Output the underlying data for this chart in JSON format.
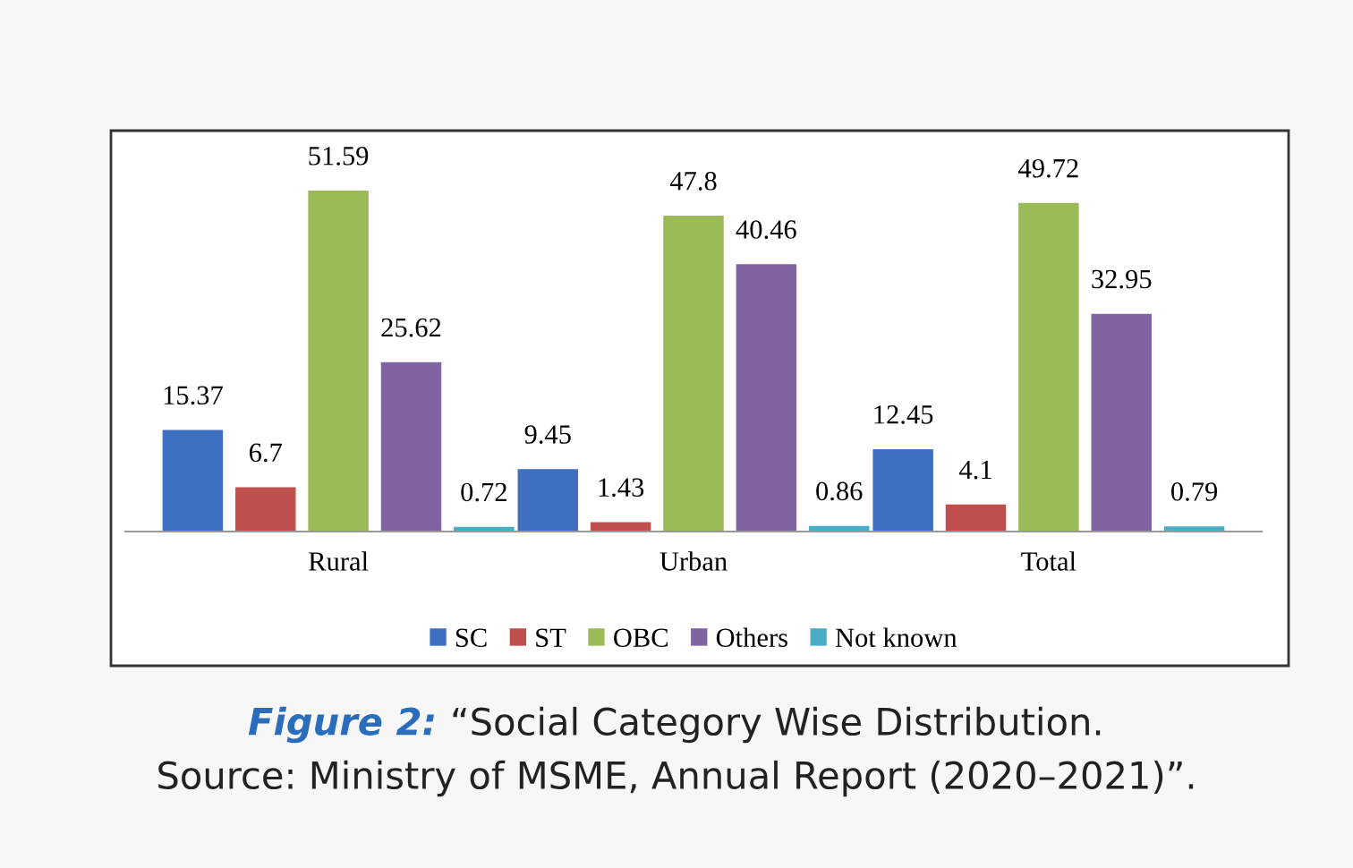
{
  "chart_data": {
    "type": "bar",
    "categories": [
      "Rural",
      "Urban",
      "Total"
    ],
    "series": [
      {
        "name": "SC",
        "color": "#3f6fc1",
        "values": [
          15.37,
          9.45,
          12.45
        ]
      },
      {
        "name": "ST",
        "color": "#c0504d",
        "values": [
          6.7,
          1.43,
          4.1
        ]
      },
      {
        "name": "OBC",
        "color": "#9bbb59",
        "values": [
          51.59,
          47.8,
          49.72
        ]
      },
      {
        "name": "Others",
        "color": "#8064a2",
        "values": [
          25.62,
          40.46,
          32.95
        ]
      },
      {
        "name": "Not known",
        "color": "#4bacc6",
        "values": [
          0.72,
          0.86,
          0.79
        ]
      }
    ],
    "data_labels": true,
    "legend": "bottom",
    "grid": false,
    "annotations": [
      "Figure 2:",
      "“Social Category Wise Distribution.",
      "Source: Ministry of MSME, Annual Report (2020–2021)”."
    ]
  }
}
